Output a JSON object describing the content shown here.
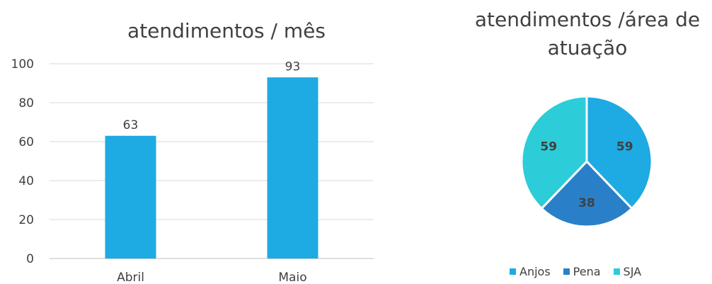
{
  "chart_data": [
    {
      "type": "bar",
      "title": "atendimentos / mês",
      "categories": [
        "Abril",
        "Maio"
      ],
      "values": [
        63,
        93
      ],
      "yticks": [
        0,
        20,
        40,
        60,
        80,
        100
      ],
      "ylim": [
        0,
        100
      ],
      "grid": true,
      "color": "#1eaae3"
    },
    {
      "type": "pie",
      "title": "atendimentos /área de atuação",
      "labels": [
        "Anjos",
        "Pena",
        "SJA"
      ],
      "values": [
        59,
        38,
        59
      ],
      "colors": [
        "#1eaae3",
        "#2a80c8",
        "#2ccdd8"
      ],
      "legend": "bottom"
    }
  ]
}
